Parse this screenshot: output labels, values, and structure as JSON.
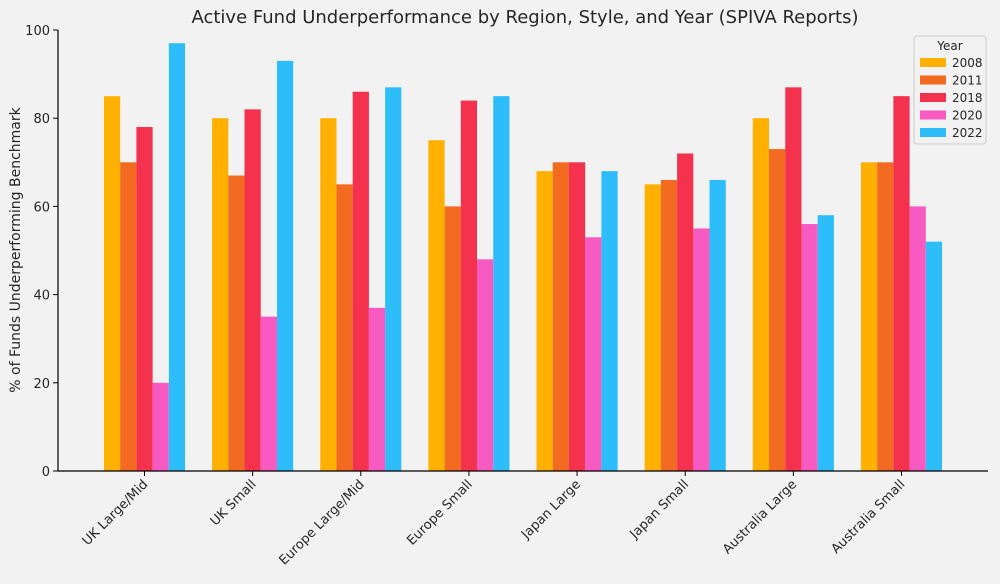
{
  "chart_data": {
    "type": "bar",
    "title": "Active Fund Underperformance by Region, Style, and Year (SPIVA Reports)",
    "xlabel": "",
    "ylabel": "% of Funds Underperforming Benchmark",
    "ylim": [
      0,
      100
    ],
    "yticks": [
      "0",
      "20",
      "40",
      "60",
      "80",
      "100"
    ],
    "grid": false,
    "legend_title": "Year",
    "legend_position": "top-right",
    "categories": [
      "UK Large/Mid",
      "UK Small",
      "Europe Large/Mid",
      "Europe Small",
      "Japan Large",
      "Japan Small",
      "Australia Large",
      "Australia Small"
    ],
    "series": [
      {
        "name": "2008",
        "color": "#ffb000",
        "values": [
          85,
          80,
          80,
          75,
          68,
          65,
          80,
          70
        ]
      },
      {
        "name": "2011",
        "color": "#f26b21",
        "values": [
          70,
          67,
          65,
          60,
          70,
          66,
          73,
          70
        ]
      },
      {
        "name": "2018",
        "color": "#f5324e",
        "values": [
          78,
          82,
          86,
          84,
          70,
          72,
          87,
          85
        ]
      },
      {
        "name": "2020",
        "color": "#f75ac0",
        "values": [
          20,
          35,
          37,
          48,
          53,
          55,
          56,
          60
        ]
      },
      {
        "name": "2022",
        "color": "#2dbdfa",
        "values": [
          97,
          93,
          87,
          85,
          68,
          66,
          58,
          52
        ]
      }
    ]
  }
}
